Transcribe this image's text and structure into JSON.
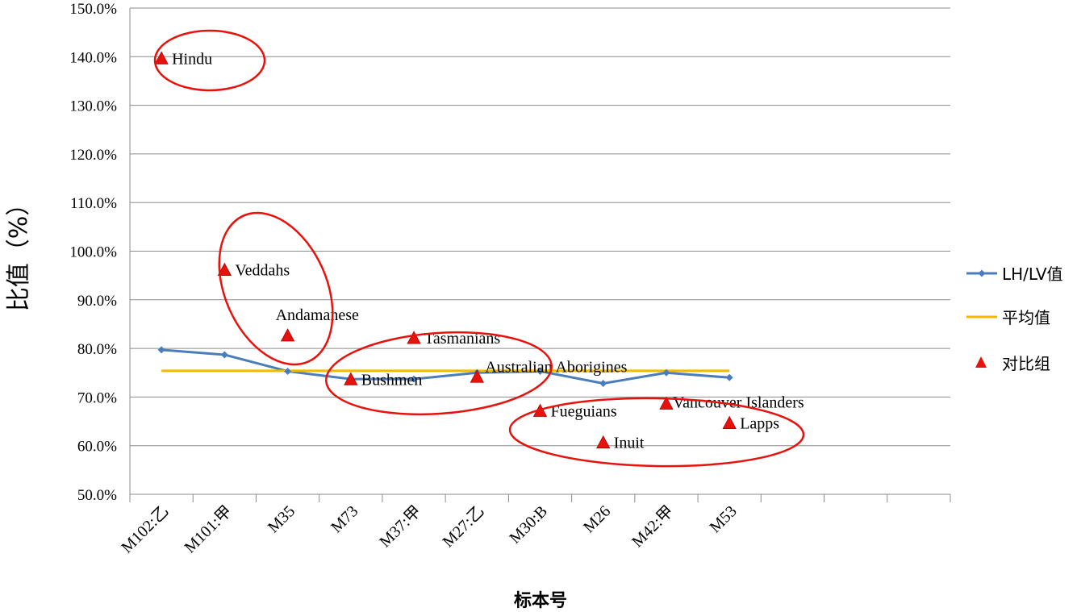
{
  "chart_data": {
    "type": "line",
    "xlabel": "标本号",
    "ylabel": "比值（%）",
    "ylim": [
      50,
      150
    ],
    "ytick_step": 10,
    "y_suffix": "%",
    "grid": "horizontal",
    "legend_position": "right",
    "categories": [
      "M102:乙",
      "M101:甲",
      "M35",
      "M73",
      "M37:甲",
      "M27:乙",
      "M30:B",
      "M26",
      "M42:甲",
      "M53"
    ],
    "extra_empty_category_slots": 3,
    "series": [
      {
        "name": "LH/LV值",
        "kind": "line-marker",
        "color": "#4a7ebb",
        "values": [
          79.7,
          78.7,
          75.3,
          73.7,
          73.7,
          75.0,
          75.3,
          72.8,
          75.0,
          74.0
        ]
      },
      {
        "name": "平均值",
        "kind": "line",
        "color": "#f5b800",
        "values": [
          75.4,
          75.4,
          75.4,
          75.4,
          75.4,
          75.4,
          75.4,
          75.4,
          75.4,
          75.4
        ]
      },
      {
        "name": "对比组",
        "kind": "triangle-marker",
        "color": "#e8120c",
        "points": [
          {
            "x": 0,
            "y": 139.5,
            "label": "Hindu"
          },
          {
            "x": 1,
            "y": 96.0,
            "label": "Veddahs"
          },
          {
            "x": 2,
            "y": 82.5,
            "label": "Andamanese"
          },
          {
            "x": 3,
            "y": 73.5,
            "label": "Bushmen"
          },
          {
            "x": 4,
            "y": 82.0,
            "label": "Tasmanians"
          },
          {
            "x": 5,
            "y": 74.0,
            "label": "Australian Aborigines"
          },
          {
            "x": 6,
            "y": 67.0,
            "label": "Fueguians"
          },
          {
            "x": 7,
            "y": 60.5,
            "label": "Inuit"
          },
          {
            "x": 8,
            "y": 68.5,
            "label": "Vancouver Islanders"
          },
          {
            "x": 9,
            "y": 64.5,
            "label": "Lapps"
          }
        ]
      }
    ],
    "annotations": {
      "ellipse_color": "#e8120c",
      "ellipse_groups": [
        [
          "Hindu"
        ],
        [
          "Veddahs",
          "Andamanese"
        ],
        [
          "Bushmen",
          "Tasmanians",
          "Australian Aborigines"
        ],
        [
          "Fueguians",
          "Inuit",
          "Vancouver Islanders",
          "Lapps"
        ]
      ]
    }
  }
}
